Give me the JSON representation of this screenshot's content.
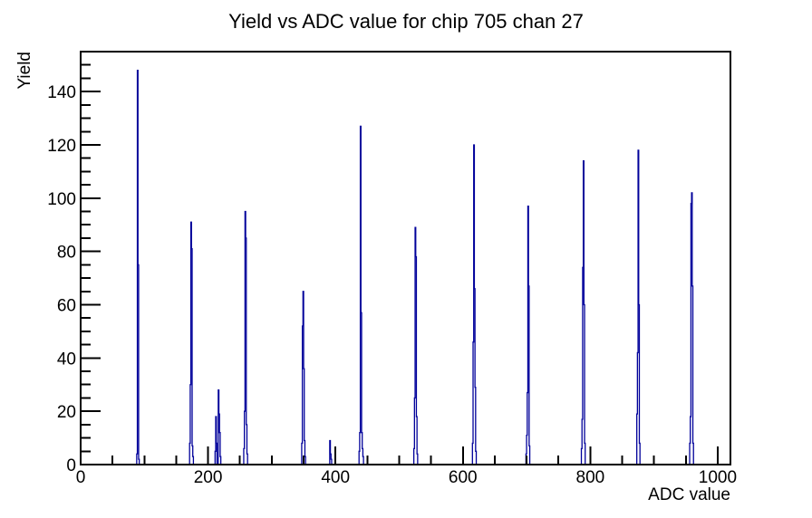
{
  "chart_data": {
    "type": "bar",
    "style": "histogram-outline",
    "title": "Yield vs ADC value for chip 705 chan 27",
    "xlabel": "ADC value",
    "ylabel": "Yield",
    "xlim": [
      0,
      1020
    ],
    "ylim": [
      0,
      155
    ],
    "grid": false,
    "legend": "none",
    "x_major_ticks": [
      0,
      200,
      400,
      600,
      800,
      1000
    ],
    "x_major_tick_labels": [
      "0",
      "200",
      "400",
      "600",
      "800",
      "1000"
    ],
    "x_minor_tick_step": 50,
    "y_major_ticks": [
      0,
      20,
      40,
      60,
      80,
      100,
      120,
      140
    ],
    "y_major_tick_labels": [
      "0",
      "20",
      "40",
      "60",
      "80",
      "100",
      "120",
      "140"
    ],
    "y_minor_tick_step": 5,
    "line_color": "#00009a",
    "axis_color": "#000000",
    "background_color": "#ffffff",
    "bins_note": "histogram bins as [adc_value, yield]; narrow multiplet peaks",
    "bins": [
      [
        88,
        4
      ],
      [
        89,
        148
      ],
      [
        90,
        75
      ],
      [
        91,
        2
      ],
      [
        171,
        8
      ],
      [
        172,
        30
      ],
      [
        173,
        91
      ],
      [
        174,
        81
      ],
      [
        175,
        7
      ],
      [
        176,
        3
      ],
      [
        211,
        5
      ],
      [
        212,
        18
      ],
      [
        213,
        8
      ],
      [
        216,
        28
      ],
      [
        217,
        19
      ],
      [
        218,
        12
      ],
      [
        219,
        3
      ],
      [
        256,
        6
      ],
      [
        257,
        20
      ],
      [
        258,
        95
      ],
      [
        259,
        85
      ],
      [
        260,
        15
      ],
      [
        261,
        4
      ],
      [
        347,
        8
      ],
      [
        348,
        52
      ],
      [
        349,
        65
      ],
      [
        350,
        36
      ],
      [
        351,
        9
      ],
      [
        352,
        3
      ],
      [
        391,
        9
      ],
      [
        392,
        4
      ],
      [
        393,
        2
      ],
      [
        437,
        5
      ],
      [
        438,
        12
      ],
      [
        439,
        127
      ],
      [
        440,
        57
      ],
      [
        441,
        12
      ],
      [
        442,
        6
      ],
      [
        443,
        3
      ],
      [
        523,
        6
      ],
      [
        524,
        25
      ],
      [
        525,
        89
      ],
      [
        526,
        78
      ],
      [
        527,
        18
      ],
      [
        528,
        4
      ],
      [
        615,
        8
      ],
      [
        616,
        46
      ],
      [
        617,
        120
      ],
      [
        618,
        66
      ],
      [
        619,
        29
      ],
      [
        620,
        5
      ],
      [
        699,
        4
      ],
      [
        700,
        11
      ],
      [
        701,
        27
      ],
      [
        702,
        97
      ],
      [
        703,
        67
      ],
      [
        704,
        7
      ],
      [
        786,
        6
      ],
      [
        787,
        17
      ],
      [
        788,
        74
      ],
      [
        789,
        114
      ],
      [
        790,
        60
      ],
      [
        791,
        8
      ],
      [
        873,
        19
      ],
      [
        874,
        42
      ],
      [
        875,
        118
      ],
      [
        876,
        60
      ],
      [
        877,
        8
      ],
      [
        956,
        8
      ],
      [
        957,
        18
      ],
      [
        958,
        98
      ],
      [
        959,
        102
      ],
      [
        960,
        67
      ],
      [
        961,
        8
      ]
    ]
  }
}
